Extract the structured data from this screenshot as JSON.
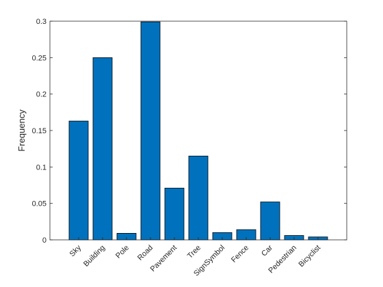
{
  "chart_data": {
    "type": "bar",
    "y_label": "Frequency",
    "categories": [
      "Sky",
      "Building",
      "Pole",
      "Road",
      "Pavement",
      "Tree",
      "SignSymbol",
      "Fence",
      "Car",
      "Pedestrian",
      "Bicyclist"
    ],
    "values": [
      0.163,
      0.25,
      0.009,
      0.299,
      0.071,
      0.115,
      0.01,
      0.014,
      0.052,
      0.006,
      0.004
    ],
    "color": "#0072bd",
    "ylim": [
      0,
      0.3
    ],
    "yticks": [
      0,
      0.05,
      0.1,
      0.15,
      0.2,
      0.25,
      0.3
    ],
    "grid": false
  }
}
